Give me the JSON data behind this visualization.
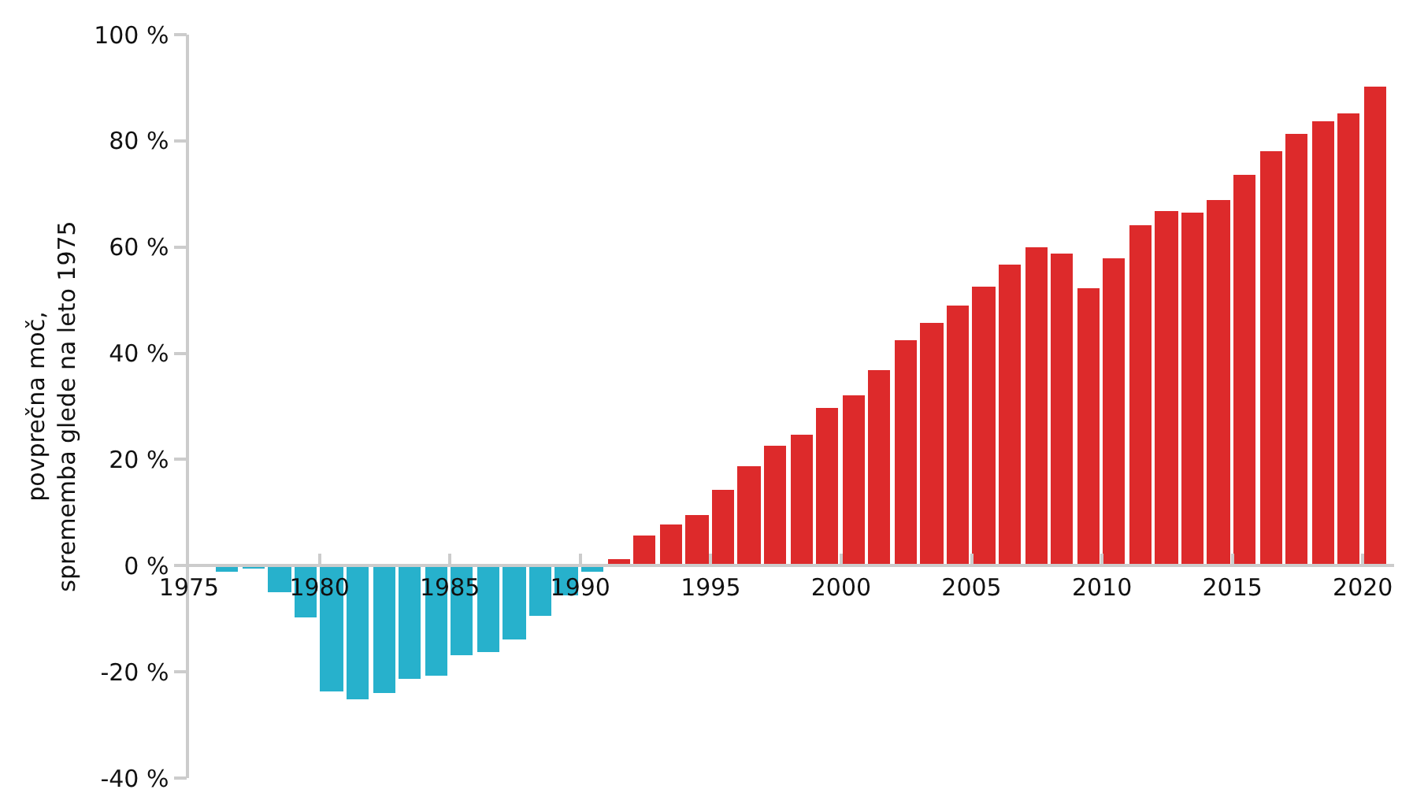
{
  "chart_data": {
    "type": "bar",
    "ylabel": "povprečna moč,\nsprememba glede na leto 1975",
    "x": [
      1976.5,
      1977.5,
      1978.5,
      1979.5,
      1980.5,
      1981.5,
      1982.5,
      1983.5,
      1984.5,
      1985.5,
      1986.5,
      1987.5,
      1988.5,
      1989.5,
      1990.5,
      1991.5,
      1992.5,
      1993.5,
      1994.5,
      1995.5,
      1996.5,
      1997.5,
      1998.5,
      1999.5,
      2000.5,
      2001.5,
      2002.5,
      2003.5,
      2004.5,
      2005.5,
      2006.5,
      2007.5,
      2008.5,
      2009.5,
      2010.5,
      2011.5,
      2012.5,
      2013.5,
      2014.5,
      2015.5,
      2016.5,
      2017.5,
      2018.5,
      2019.5,
      2020.5
    ],
    "values": [
      -1.3,
      -0.9,
      -5.3,
      -10,
      -24,
      -25.4,
      -24.2,
      -21.6,
      -20.9,
      -17.3,
      -16.5,
      -14.2,
      -9.8,
      -5.9,
      -1.3,
      1.1,
      5.8,
      7.7,
      9.6,
      14.3,
      18.7,
      22.7,
      24.8,
      29.8,
      32.1,
      36.9,
      42.4,
      45.8,
      49,
      52.6,
      56.8,
      60.1,
      58.9,
      52.1,
      57.8,
      64.1,
      66.7,
      66.5,
      68.9,
      73.5,
      78.2,
      81.3,
      83.7,
      85.2,
      90.2
    ],
    "colors": [
      "#27b1cc",
      "#27b1cc",
      "#27b1cc",
      "#27b1cc",
      "#27b1cc",
      "#27b1cc",
      "#27b1cc",
      "#27b1cc",
      "#27b1cc",
      "#27b1cc",
      "#27b1cc",
      "#27b1cc",
      "#27b1cc",
      "#27b1cc",
      "#27b1cc",
      "#dd2a2b",
      "#dd2a2b",
      "#dd2a2b",
      "#dd2a2b",
      "#dd2a2b",
      "#dd2a2b",
      "#dd2a2b",
      "#dd2a2b",
      "#dd2a2b",
      "#dd2a2b",
      "#dd2a2b",
      "#dd2a2b",
      "#dd2a2b",
      "#dd2a2b",
      "#dd2a2b",
      "#dd2a2b",
      "#dd2a2b",
      "#dd2a2b",
      "#dd2a2b",
      "#dd2a2b",
      "#dd2a2b",
      "#dd2a2b",
      "#dd2a2b",
      "#dd2a2b",
      "#dd2a2b",
      "#dd2a2b",
      "#dd2a2b",
      "#dd2a2b",
      "#dd2a2b",
      "#dd2a2b"
    ],
    "xlim": [
      1975,
      2021.2
    ],
    "xticks": [
      1975,
      1980,
      1985,
      1990,
      1995,
      2000,
      2005,
      2010,
      2015,
      2020
    ],
    "ylim": [
      -40,
      100
    ],
    "yticks": [
      {
        "value": -40,
        "label": "-40 %"
      },
      {
        "value": -20,
        "label": "-20 %"
      },
      {
        "value": 0,
        "label": "0 %"
      },
      {
        "value": 20,
        "label": "20 %"
      },
      {
        "value": 40,
        "label": "40 %"
      },
      {
        "value": 60,
        "label": "60 %"
      },
      {
        "value": 80,
        "label": "80 %"
      },
      {
        "value": 100,
        "label": "100 %"
      }
    ],
    "grid": false
  }
}
